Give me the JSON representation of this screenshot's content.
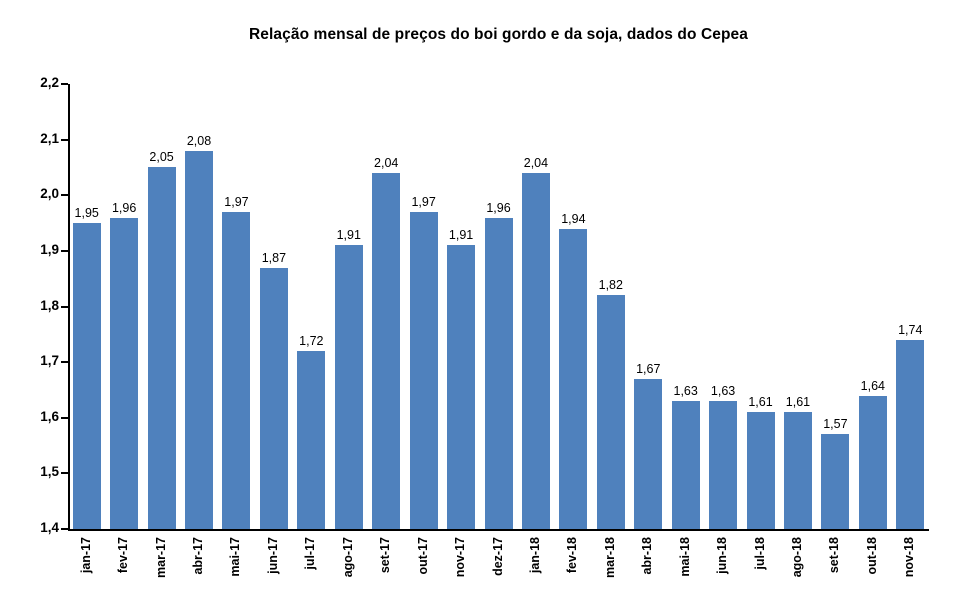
{
  "chart_data": {
    "type": "bar",
    "title": "Relação mensal de preços do boi gordo e da soja, dados do Cepea",
    "categories": [
      "jan-17",
      "fev-17",
      "mar-17",
      "abr-17",
      "mai-17",
      "jun-17",
      "jul-17",
      "ago-17",
      "set-17",
      "out-17",
      "nov-17",
      "dez-17",
      "jan-18",
      "fev-18",
      "mar-18",
      "abr-18",
      "mai-18",
      "jun-18",
      "jul-18",
      "ago-18",
      "set-18",
      "out-18",
      "nov-18"
    ],
    "values": [
      1.95,
      1.96,
      2.05,
      2.08,
      1.97,
      1.87,
      1.72,
      1.91,
      2.04,
      1.97,
      1.91,
      1.96,
      2.04,
      1.94,
      1.82,
      1.67,
      1.63,
      1.63,
      1.61,
      1.61,
      1.57,
      1.64,
      1.74
    ],
    "value_labels": [
      "1,95",
      "1,96",
      "2,05",
      "2,08",
      "1,97",
      "1,87",
      "1,72",
      "1,91",
      "2,04",
      "1,97",
      "1,91",
      "1,96",
      "2,04",
      "1,94",
      "1,82",
      "1,67",
      "1,63",
      "1,63",
      "1,61",
      "1,61",
      "1,57",
      "1,64",
      "1,74"
    ],
    "xlabel": "",
    "ylabel": "",
    "ylim": [
      1.4,
      2.2
    ],
    "ytick_step": 0.1,
    "ytick_labels": [
      "2,2",
      "2,1",
      "2,0",
      "1,9",
      "1,8",
      "1,7",
      "1,6",
      "1,5",
      "1,4"
    ],
    "bar_color": "#4F81BD",
    "axis_color": "#000000",
    "grid": false,
    "legend": "none"
  }
}
